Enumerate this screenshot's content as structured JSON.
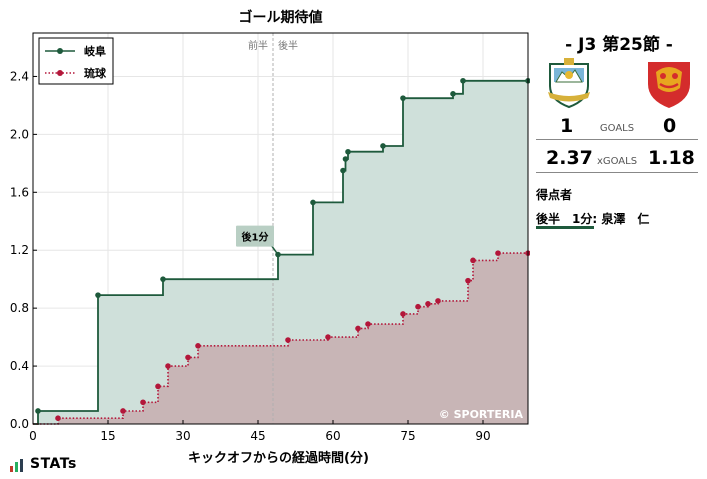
{
  "chart_data": {
    "type": "line",
    "title": "ゴール期待値",
    "xlabel": "キックオフからの経過時間(分)",
    "ylabel": "",
    "xlim": [
      0,
      99
    ],
    "ylim": [
      0,
      2.7
    ],
    "xticks": [
      0,
      15,
      30,
      45,
      60,
      75,
      90
    ],
    "yticks": [
      0.0,
      0.4,
      0.8,
      1.2,
      1.6,
      2.0,
      2.4
    ],
    "ytick_labels": [
      "0.0",
      "0.4",
      "0.8",
      "1.2",
      "1.6",
      "2.0",
      "2.4"
    ],
    "halftime_minute": 48,
    "halftime_labels": {
      "first": "前半",
      "second": "後半"
    },
    "legend_position": "top-left",
    "grid": true,
    "watermark": "© SPORTERIA",
    "series": [
      {
        "name": "岐阜",
        "color": "#1e5a3c",
        "fill": "#cfe0da",
        "style": "solid",
        "points": [
          [
            0,
            0
          ],
          [
            1,
            0.09
          ],
          [
            13,
            0.89
          ],
          [
            26,
            1.0
          ],
          [
            49,
            1.17
          ],
          [
            56,
            1.53
          ],
          [
            62,
            1.75
          ],
          [
            62.5,
            1.83
          ],
          [
            63,
            1.88
          ],
          [
            70,
            1.92
          ],
          [
            74,
            2.25
          ],
          [
            84,
            2.28
          ],
          [
            86,
            2.37
          ],
          [
            99,
            2.37
          ]
        ]
      },
      {
        "name": "琉球",
        "color": "#b3173a",
        "fill": "#c7b2b4",
        "style": "dotted",
        "points": [
          [
            0,
            0
          ],
          [
            5,
            0.04
          ],
          [
            18,
            0.09
          ],
          [
            22,
            0.15
          ],
          [
            25,
            0.26
          ],
          [
            27,
            0.4
          ],
          [
            31,
            0.46
          ],
          [
            33,
            0.54
          ],
          [
            51,
            0.58
          ],
          [
            59,
            0.6
          ],
          [
            65,
            0.66
          ],
          [
            67,
            0.69
          ],
          [
            74,
            0.76
          ],
          [
            77,
            0.81
          ],
          [
            79,
            0.83
          ],
          [
            81,
            0.85
          ],
          [
            87,
            0.99
          ],
          [
            88,
            1.13
          ],
          [
            93,
            1.18
          ],
          [
            99,
            1.18
          ]
        ]
      }
    ],
    "annotations": [
      {
        "text": "後1分",
        "x": 49,
        "y": 1.17,
        "series": "岐阜"
      }
    ]
  },
  "match": {
    "title": "- J3 第25節 -",
    "home_team": "岐阜",
    "away_team": "琉球",
    "home_goals": "1",
    "away_goals": "0",
    "goals_label": "GOALS",
    "home_xg": "2.37",
    "away_xg": "1.18",
    "xg_label": "xGOALS",
    "home_color": "#1e5a3c",
    "away_color": "#b3173a",
    "home_crest_icon": "fc-gifu-crest-icon",
    "away_crest_icon": "fc-ryukyu-crest-icon"
  },
  "scorers": {
    "heading": "得点者",
    "lines": [
      "後半　1分: 泉澤　仁"
    ]
  },
  "brand": {
    "text": "STATs",
    "icon": "bar-chart-icon"
  }
}
